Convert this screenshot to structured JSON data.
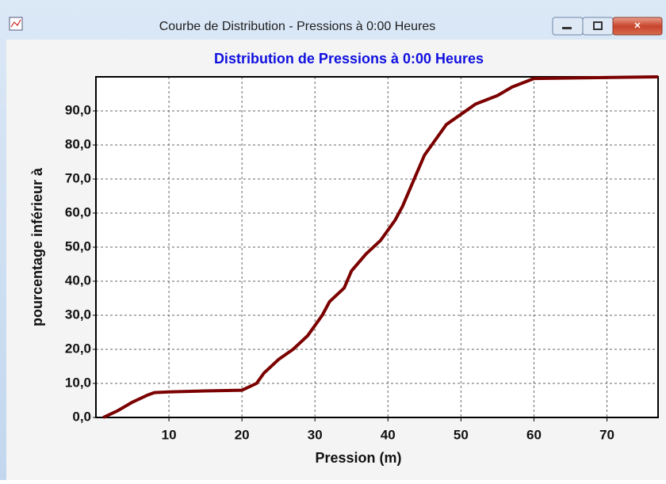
{
  "window": {
    "title": "Courbe de Distribution - Pressions à 0:00 Heures"
  },
  "chart_data": {
    "type": "line",
    "title": "Distribution de Pressions à 0:00 Heures",
    "x_label": "Pression (m)",
    "y_label": "pourcentage inférieur à",
    "series": [
      {
        "name": "Pressions",
        "color": "#7b0000",
        "x": [
          1,
          3,
          5,
          7,
          8,
          10,
          15,
          20,
          21,
          22,
          23,
          25,
          27,
          29,
          31,
          32,
          34,
          35,
          37,
          39,
          40,
          41,
          42,
          43,
          44,
          45,
          47,
          48,
          50,
          52,
          55,
          57,
          60,
          77
        ],
        "values": [
          0,
          2,
          4.5,
          6.5,
          7.3,
          7.5,
          7.8,
          8,
          9,
          10,
          13,
          17,
          20,
          24,
          30,
          34,
          38,
          43,
          48,
          52,
          55,
          58,
          62,
          67,
          72,
          77,
          83,
          86,
          89,
          92,
          94.5,
          97,
          99.5,
          100
        ]
      }
    ],
    "xlim": [
      0,
      77
    ],
    "xticks": [
      10,
      20,
      30,
      40,
      50,
      60,
      70
    ],
    "ylim": [
      0,
      100
    ],
    "yticks": [
      {
        "value": 0,
        "label": "0,0"
      },
      {
        "value": 10,
        "label": "10,0"
      },
      {
        "value": 20,
        "label": "20,0"
      },
      {
        "value": 30,
        "label": "30,0"
      },
      {
        "value": 40,
        "label": "40,0"
      },
      {
        "value": 50,
        "label": "50,0"
      },
      {
        "value": 60,
        "label": "60,0"
      },
      {
        "value": 70,
        "label": "70,0"
      },
      {
        "value": 80,
        "label": "80,0"
      },
      {
        "value": 90,
        "label": "90,0"
      }
    ],
    "grid": true
  }
}
